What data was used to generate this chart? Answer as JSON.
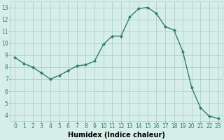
{
  "x": [
    0,
    1,
    2,
    3,
    4,
    5,
    6,
    7,
    8,
    9,
    10,
    11,
    12,
    13,
    14,
    15,
    16,
    17,
    18,
    19,
    20,
    21,
    22,
    23
  ],
  "y": [
    8.8,
    8.3,
    8.0,
    7.5,
    7.0,
    7.3,
    7.7,
    8.1,
    8.2,
    8.5,
    9.9,
    10.6,
    10.6,
    12.2,
    12.9,
    13.0,
    12.5,
    11.4,
    11.1,
    9.3,
    6.3,
    4.6,
    3.9,
    3.7
  ],
  "line_color": "#2e7d6e",
  "marker": "D",
  "marker_size": 2,
  "bg_color": "#d6eee8",
  "grid_color": "#aecfc8",
  "xlabel": "Humidex (Indice chaleur)",
  "xlim": [
    -0.5,
    23.5
  ],
  "ylim": [
    3.5,
    13.5
  ],
  "yticks": [
    4,
    5,
    6,
    7,
    8,
    9,
    10,
    11,
    12,
    13
  ],
  "xticks": [
    0,
    1,
    2,
    3,
    4,
    5,
    6,
    7,
    8,
    9,
    10,
    11,
    12,
    13,
    14,
    15,
    16,
    17,
    18,
    19,
    20,
    21,
    22,
    23
  ],
  "tick_fontsize": 5.5,
  "xlabel_fontsize": 7,
  "linewidth": 1.0
}
